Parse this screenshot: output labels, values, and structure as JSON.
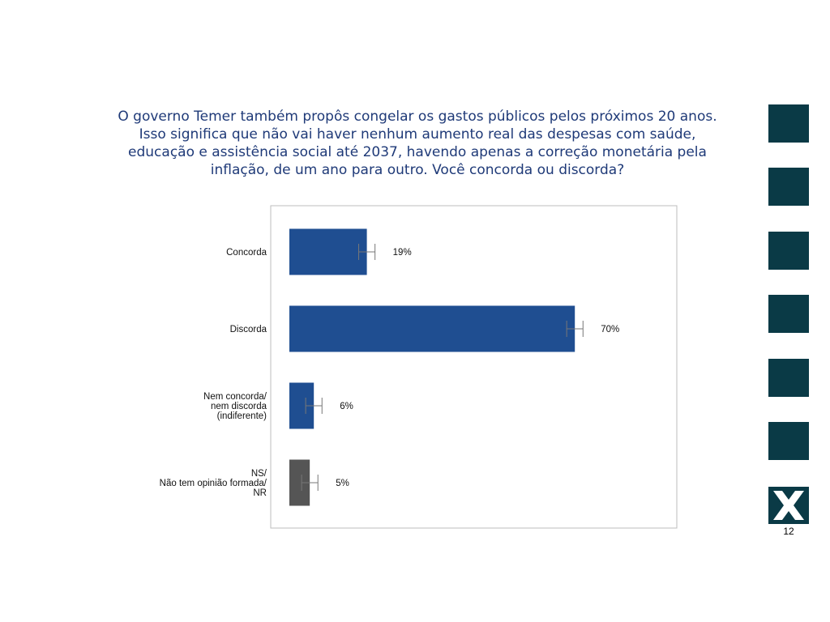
{
  "question": {
    "lines": [
      "O governo Temer também propôs congelar os gastos públicos pelos próximos 20 anos.",
      "Isso significa que não vai haver nenhum aumento real das despesas com saúde,",
      "educação e assistência social até 2037, havendo apenas a correção monetária pela",
      "inflação, de um ano para outro. Você concorda ou discorda?"
    ]
  },
  "chart_data": {
    "type": "bar",
    "orientation": "horizontal",
    "categories": [
      [
        "Concorda"
      ],
      [
        "Discorda"
      ],
      [
        "Nem concorda/",
        "nem discorda",
        "(indiferente)"
      ],
      [
        "NS/",
        "Não tem opinião formada/",
        "NR"
      ]
    ],
    "values": [
      19,
      70,
      6,
      5
    ],
    "value_labels": [
      "19%",
      "70%",
      "6%",
      "5%"
    ],
    "error_margin": 2,
    "colors": [
      "#1f4e91",
      "#1f4e91",
      "#1f4e91",
      "#555555"
    ],
    "xlim": [
      0,
      95
    ],
    "grid": false,
    "legend": "none"
  },
  "sidebar": {
    "color": "#0a3a46",
    "logo_icon": "x-logo-icon",
    "page_number": "12"
  }
}
